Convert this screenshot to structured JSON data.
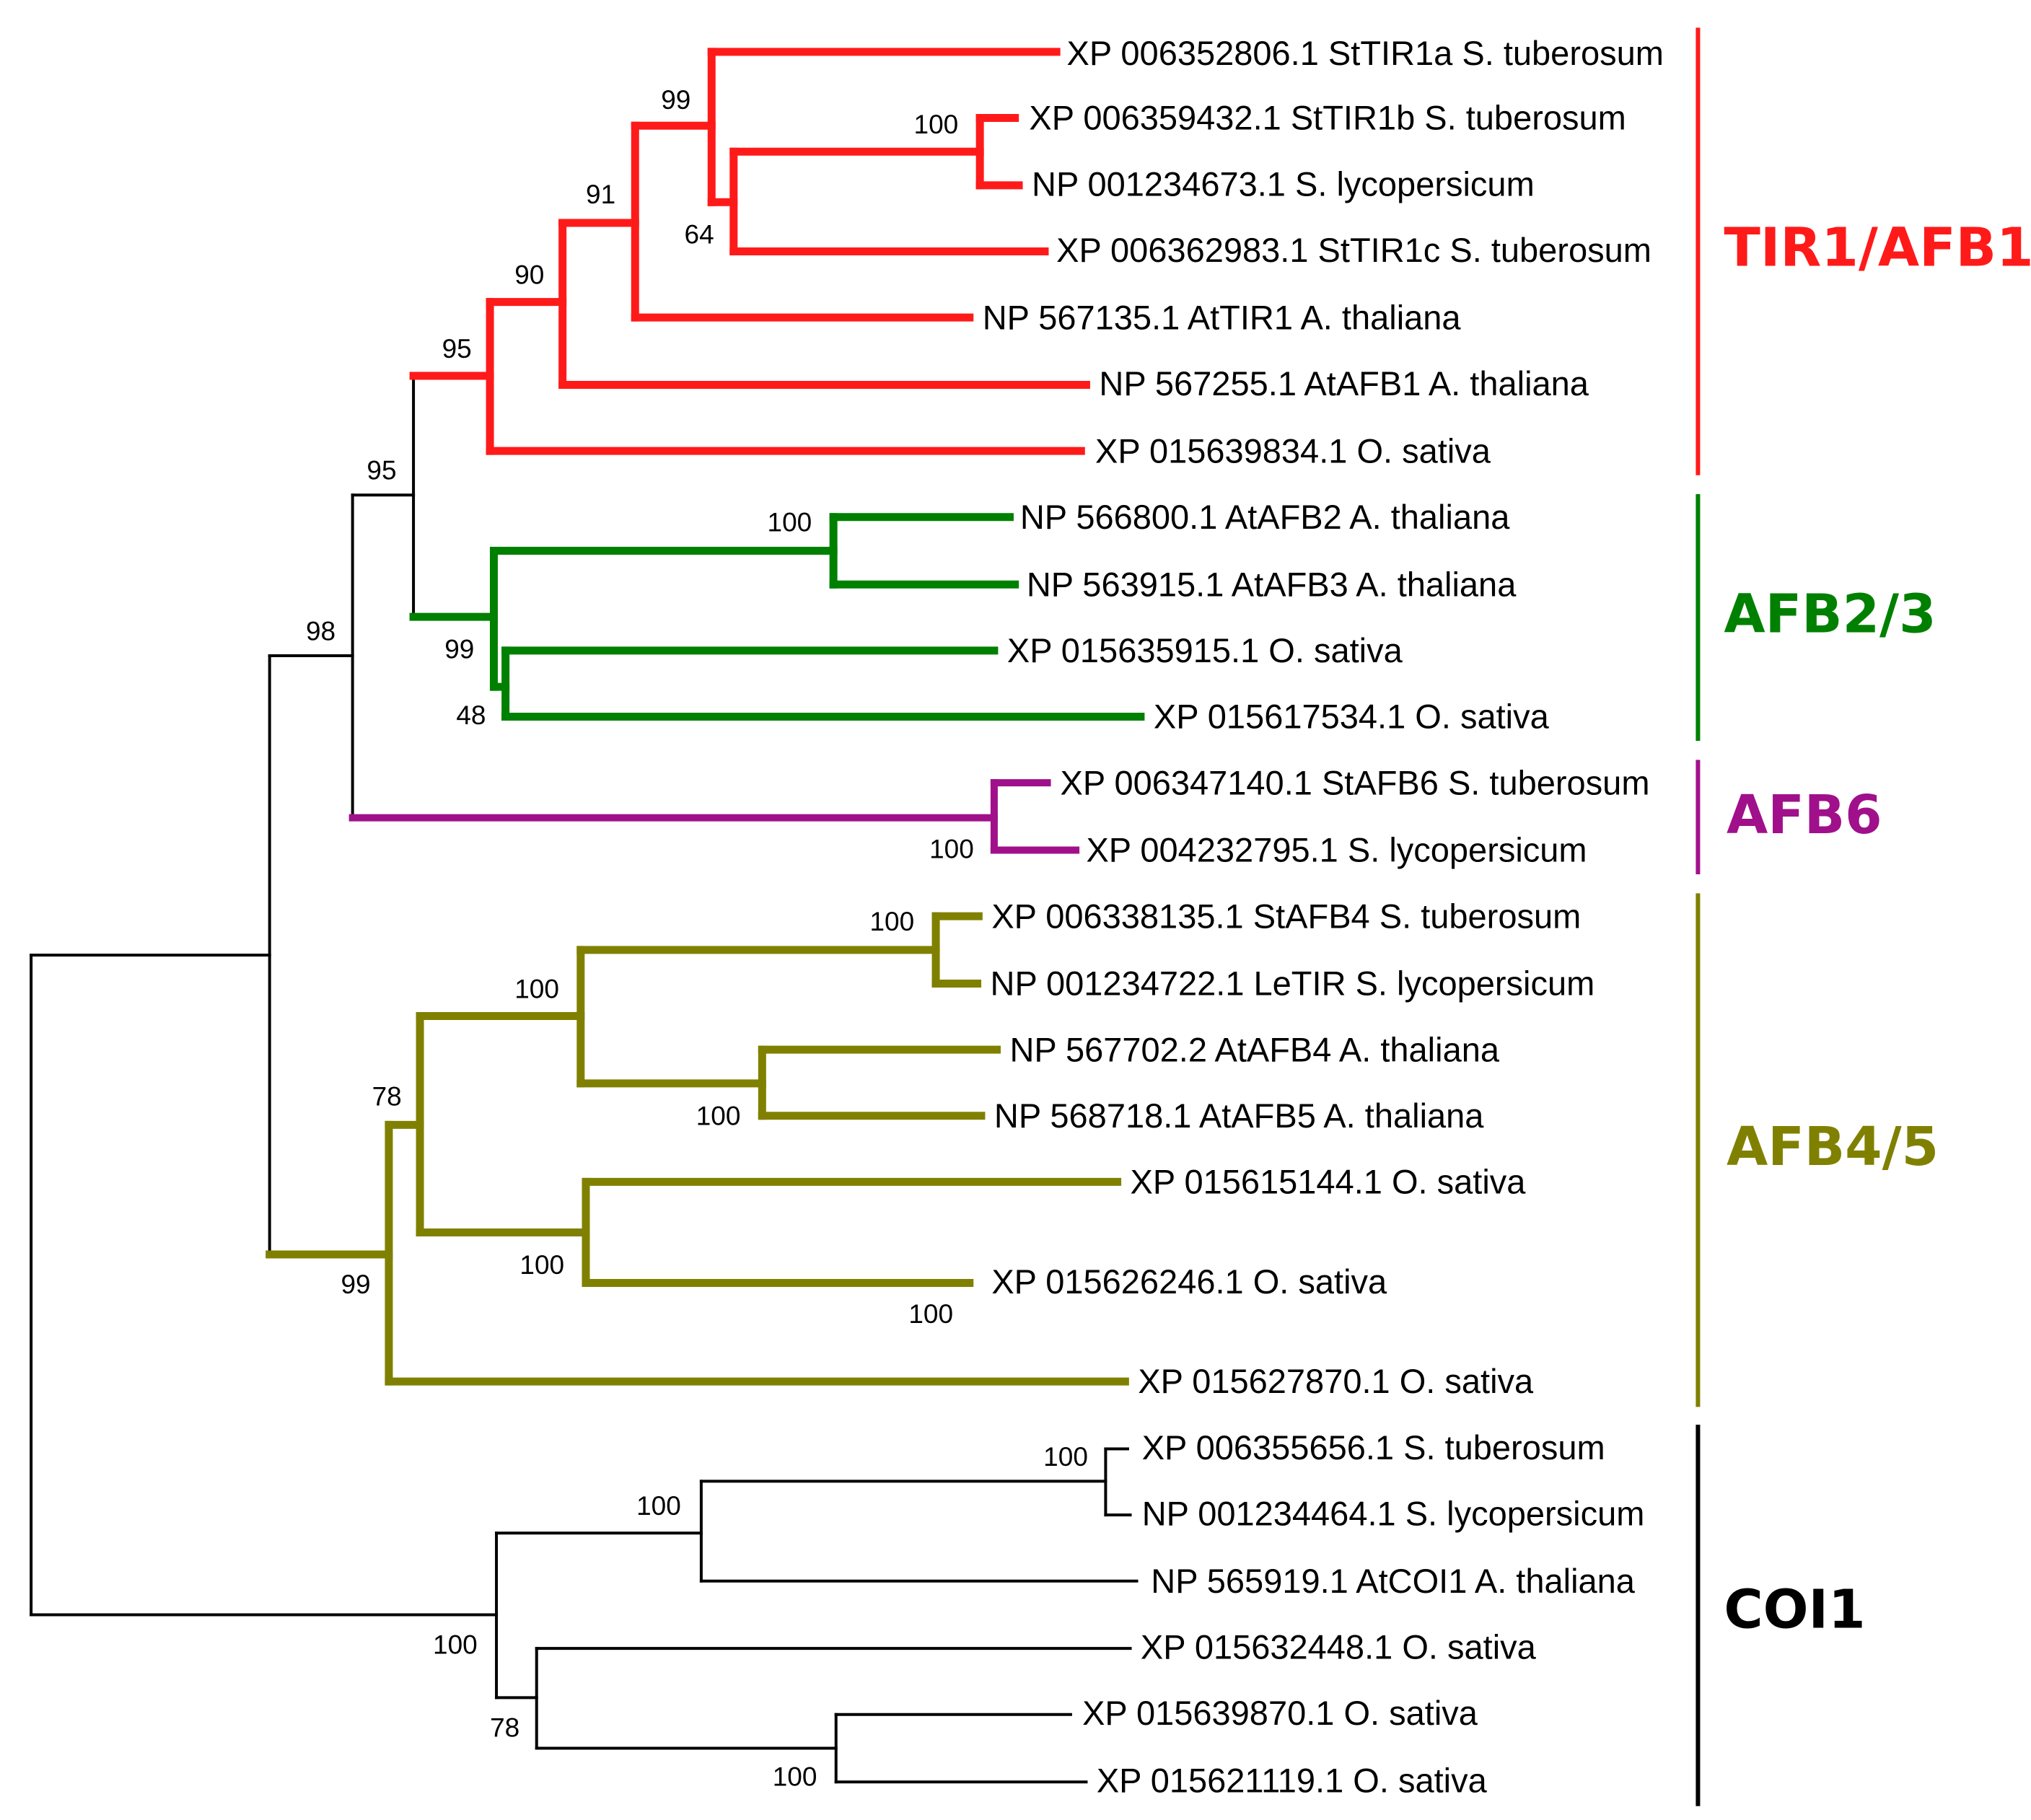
{
  "colors": {
    "tir1_afb1": "#ff1a1a",
    "afb2_3": "#008000",
    "afb6": "#a0108a",
    "afb4_5": "#808000",
    "coi1": "#000000"
  },
  "clades": {
    "tir1_afb1": "TIR1/AFB1",
    "afb2_3": "AFB2/3",
    "afb6": "AFB6",
    "afb4_5": "AFB4/5",
    "coi1": "COI1"
  },
  "leaves": [
    "XP 006352806.1 StTIR1a S. tuberosum",
    "XP 006359432.1 StTIR1b S. tuberosum",
    "NP 001234673.1 S. lycopersicum",
    "XP 006362983.1 StTIR1c S. tuberosum",
    "NP 567135.1 AtTIR1 A. thaliana",
    "NP 567255.1 AtAFB1 A. thaliana",
    "XP 015639834.1 O. sativa",
    "NP 566800.1 AtAFB2 A. thaliana",
    "NP 563915.1 AtAFB3 A. thaliana",
    "XP 015635915.1 O. sativa",
    "XP 015617534.1 O. sativa",
    "XP 006347140.1 StAFB6 S. tuberosum",
    "XP 004232795.1 S. lycopersicum",
    "XP 006338135.1 StAFB4 S. tuberosum",
    "NP 001234722.1 LeTIR S. lycopersicum",
    "NP 567702.2 AtAFB4 A. thaliana",
    "NP 568718.1 AtAFB5 A. thaliana",
    "XP 015615144.1 O. sativa",
    "XP 015626246.1 O. sativa",
    "XP 015627870.1 O. sativa",
    "XP 006355656.1 S. tuberosum",
    "NP 001234464.1 S. lycopersicum",
    "NP 565919.1 AtCOI1 A. thaliana",
    "XP 015632448.1 O. sativa",
    "XP 015639870.1 O. sativa",
    "XP 015621119.1 O. sativa"
  ],
  "bootstrap": {
    "stTIR1a_group": "99",
    "stTIR1b_lyco": "100",
    "stTIR1c_group": "64",
    "atTIR1_group": "91",
    "atAFB1_group": "90",
    "tir1_afb1_clade": "95",
    "tir_afb23": "95",
    "afb2_afb3": "100",
    "afb23_clade": "99",
    "osativa_pair": "48",
    "tir_afb6": "98",
    "afb6_clade": "100",
    "afb4_lycotir": "100",
    "afb4_afb5": "100",
    "dicot_afb45": "100",
    "afb45_core": "78",
    "osativa_afb45": "100",
    "osativa_afb45_inner": "100",
    "afb45_clade": "99",
    "coi1_solanum": "100",
    "coi1_dicot": "100",
    "coi1_clade": "100",
    "coi1_osativa": "78",
    "coi1_osativa_pair": "100"
  }
}
